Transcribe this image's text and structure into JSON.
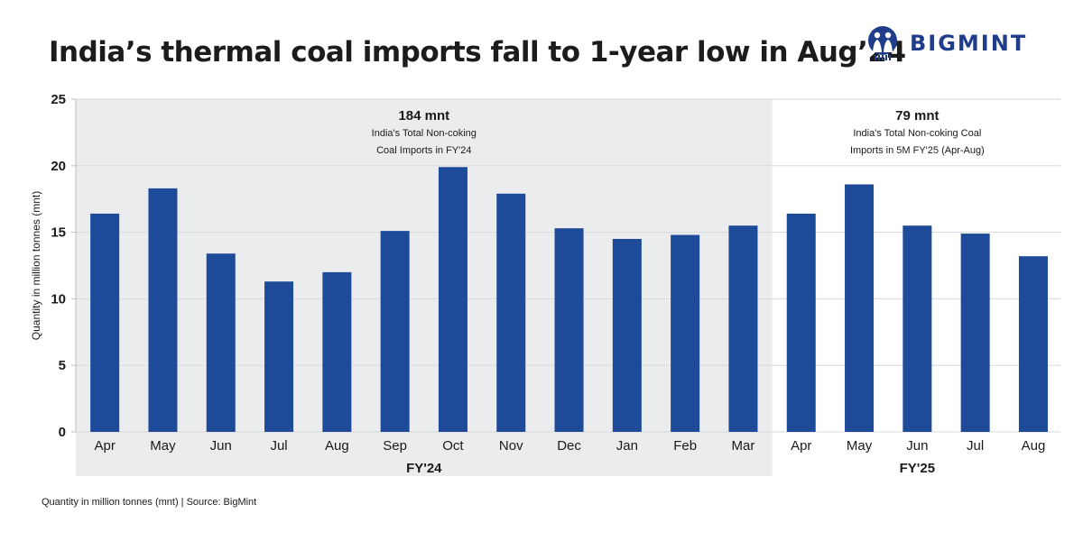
{
  "header": {
    "title": "India’s thermal coal imports fall to 1-year low in Aug’24",
    "logo_text": "BIGMINT",
    "brand_color": "#1f3d8a"
  },
  "footer": {
    "source": "Quantity in million tonnes (mnt) | Source: BigMint"
  },
  "colors": {
    "bar": "#1e4a9a",
    "shade": "#ebeced",
    "grid": "#d9d9d9"
  },
  "chart_data": {
    "type": "bar",
    "title": "India’s thermal coal imports fall to 1-year low in Aug’24",
    "xlabel": "",
    "ylabel": "Quantity in million tonnes (mnt)",
    "ylim": [
      0,
      25
    ],
    "yticks": [
      0,
      5,
      10,
      15,
      20,
      25
    ],
    "grid": true,
    "categories": [
      "Apr",
      "May",
      "Jun",
      "Jul",
      "Aug",
      "Sep",
      "Oct",
      "Nov",
      "Dec",
      "Jan",
      "Feb",
      "Mar",
      "Apr",
      "May",
      "Jun",
      "Jul",
      "Aug"
    ],
    "values": [
      16.4,
      18.3,
      13.4,
      11.3,
      12.0,
      15.1,
      19.9,
      17.9,
      15.3,
      14.5,
      14.8,
      15.5,
      16.4,
      18.6,
      15.5,
      14.9,
      13.2
    ],
    "groups": [
      {
        "label": "FY'24",
        "count": 12,
        "shaded": true,
        "total": "184 mnt",
        "note_lines": [
          "India's Total Non-coking",
          "Coal Imports in FY'24"
        ]
      },
      {
        "label": "FY'25",
        "count": 5,
        "shaded": false,
        "total": "79 mnt",
        "note_lines": [
          "India's Total Non-coking Coal",
          "Imports in 5M FY'25 (Apr-Aug)"
        ]
      }
    ]
  }
}
